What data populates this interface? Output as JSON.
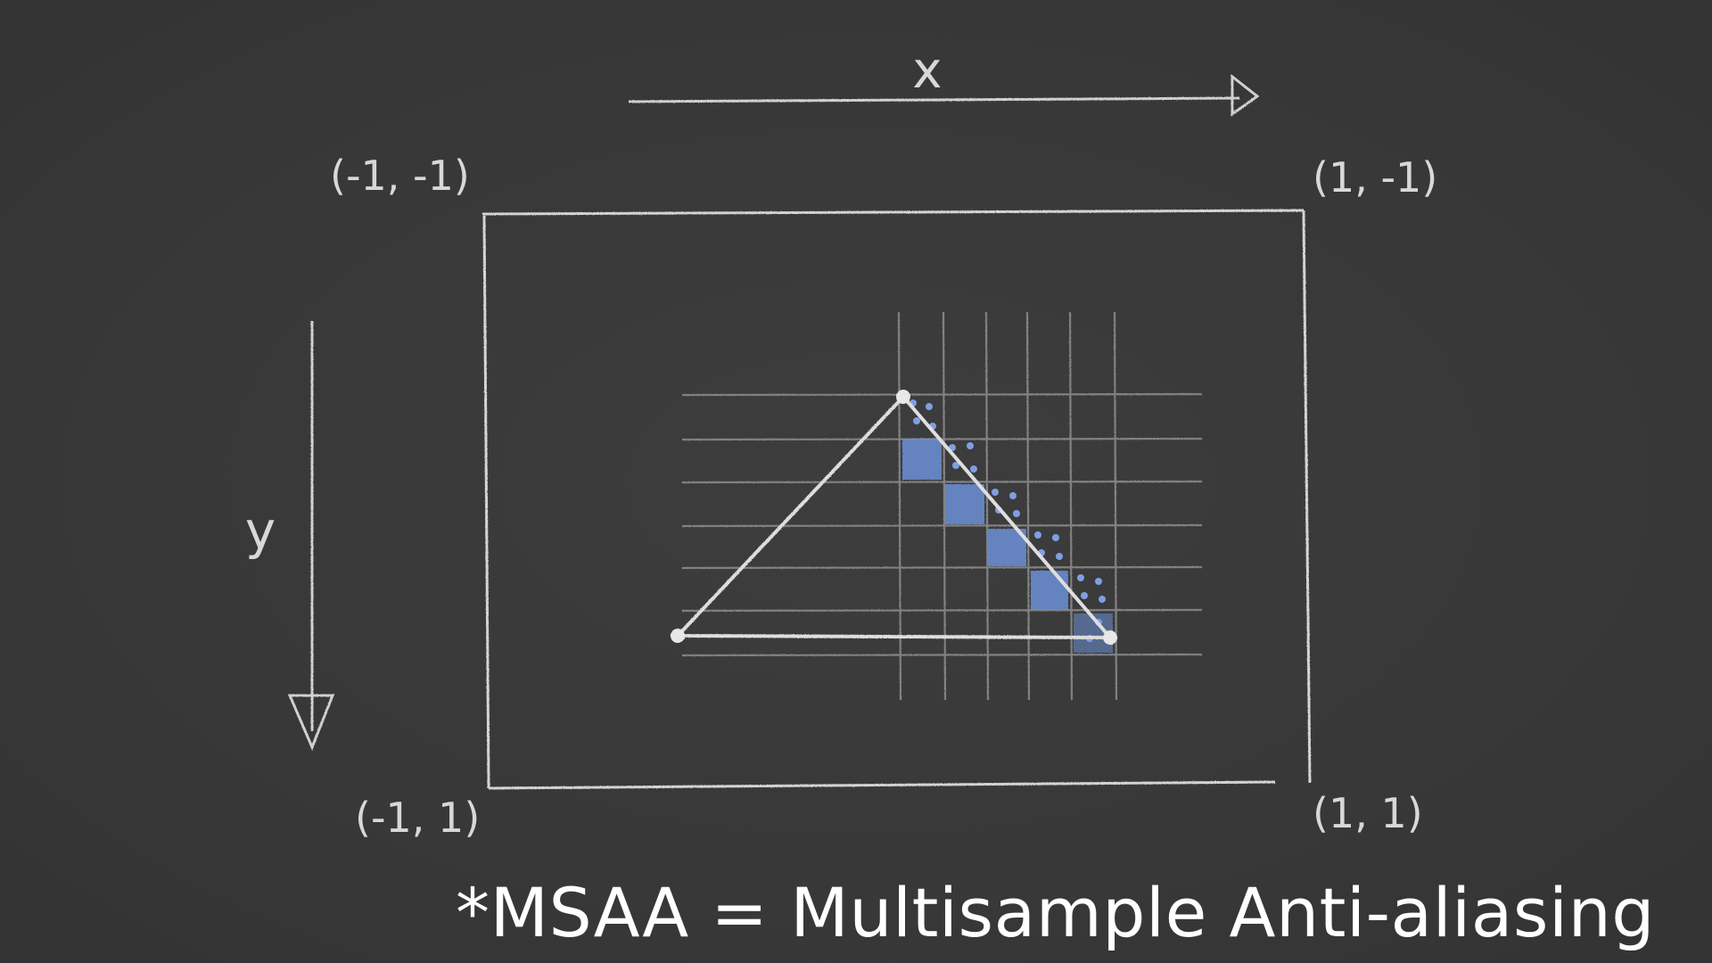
{
  "diagram": {
    "axis_x_label": "x",
    "axis_y_label": "y",
    "corner_top_left": "(-1, -1)",
    "corner_top_right": "(1, -1)",
    "corner_bottom_left": "(-1, 1)",
    "corner_bottom_right": "(1, 1)"
  },
  "caption": "*MSAA = Multisample Anti-aliasing",
  "colors": {
    "background": "#3a3a3a",
    "chalk": "#d8d8d8",
    "grid": "#9a9a9a",
    "pixel_fill": "#6b8fd6"
  }
}
